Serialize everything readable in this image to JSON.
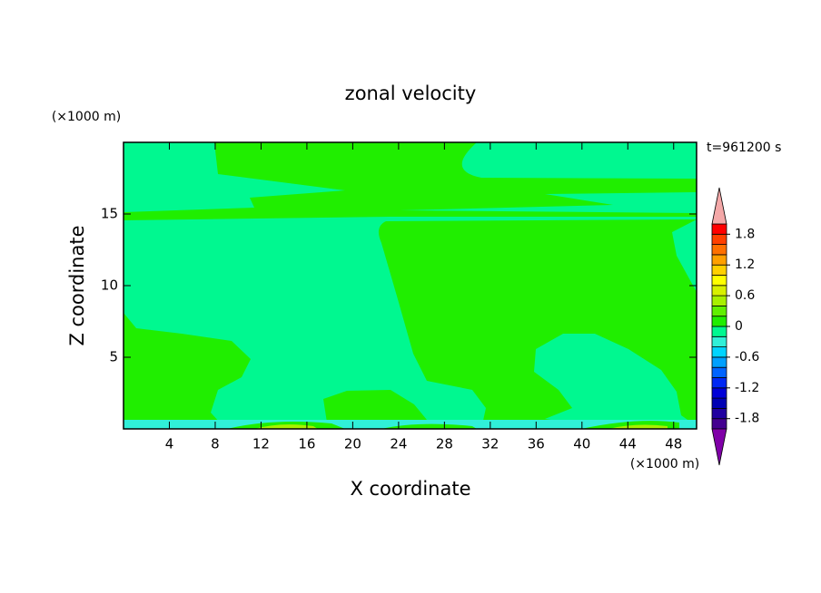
{
  "chart_data": {
    "type": "contour",
    "title": "zonal velocity",
    "x_label": "X coordinate",
    "y_label": "Z coordinate",
    "x_unit": "(×1000 m)",
    "y_unit": "(×1000 m)",
    "time_label": "t=961200 s",
    "xlim": [
      0,
      50
    ],
    "xticks": [
      4,
      8,
      12,
      16,
      20,
      24,
      28,
      32,
      36,
      40,
      44,
      48
    ],
    "ylim": [
      0,
      20
    ],
    "yticks": [
      5,
      10,
      15
    ],
    "levels": [
      -2,
      -1.8,
      -1.6,
      -1.4,
      -1.2,
      -1,
      -0.8,
      -0.6,
      -0.4,
      -0.2,
      0,
      0.2,
      0.4,
      0.6,
      0.8,
      1,
      1.2,
      1.4,
      1.6,
      1.8,
      2
    ],
    "colors": [
      "#440090",
      "#2000a0",
      "#0000b4",
      "#0000d8",
      "#0028f4",
      "#0064ff",
      "#00a0ff",
      "#00d4ff",
      "#30f0d8",
      "#00f890",
      "#20ee00",
      "#60f000",
      "#a8f000",
      "#d8f000",
      "#ffff00",
      "#ffd000",
      "#ffa000",
      "#ff7000",
      "#ff4000",
      "#ff0000"
    ],
    "under_color": "#8000a8",
    "over_color": "#f4a8a8",
    "colorbar_ticks": [
      -1.8,
      -1.2,
      -0.6,
      0,
      0.6,
      1.2,
      1.8
    ]
  }
}
